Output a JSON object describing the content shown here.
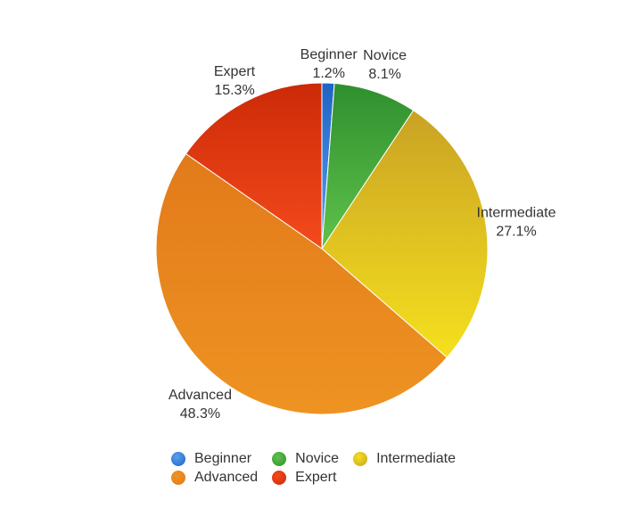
{
  "chart_data": {
    "type": "pie",
    "slices": [
      {
        "label": "Beginner",
        "value": 1.2,
        "value_label": "1.2%",
        "color": "#2f7bd6"
      },
      {
        "label": "Novice",
        "value": 8.1,
        "value_label": "8.1%",
        "color": "#3aa53a"
      },
      {
        "label": "Intermediate",
        "value": 27.1,
        "value_label": "27.1%",
        "color": "#e0bf1e"
      },
      {
        "label": "Advanced",
        "value": 48.3,
        "value_label": "48.3%",
        "color": "#ea861c"
      },
      {
        "label": "Expert",
        "value": 15.3,
        "value_label": "15.3%",
        "color": "#e23d12"
      }
    ],
    "legend": {
      "position": "bottom",
      "entries": [
        "Beginner",
        "Novice",
        "Intermediate",
        "Advanced",
        "Expert"
      ]
    }
  }
}
